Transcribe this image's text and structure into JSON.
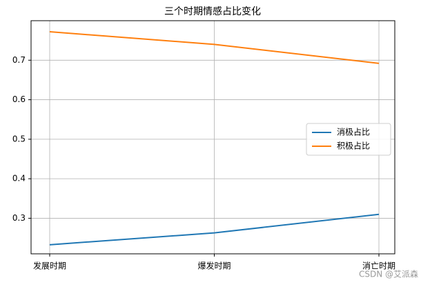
{
  "chart_data": {
    "type": "line",
    "title": "三个时期情感占比变化",
    "categories": [
      "发展时期",
      "爆发时期",
      "消亡时期"
    ],
    "series": [
      {
        "name": "消极占比",
        "color": "#1f77b4",
        "values": [
          0.233,
          0.263,
          0.31
        ]
      },
      {
        "name": "积极占比",
        "color": "#ff7f0e",
        "values": [
          0.772,
          0.74,
          0.692
        ]
      }
    ],
    "ylim": [
      0.21,
      0.8
    ],
    "yticks": [
      0.3,
      0.4,
      0.5,
      0.6,
      0.7
    ],
    "grid": true,
    "legend": "center right",
    "watermark": "CSDN @艾派森"
  }
}
